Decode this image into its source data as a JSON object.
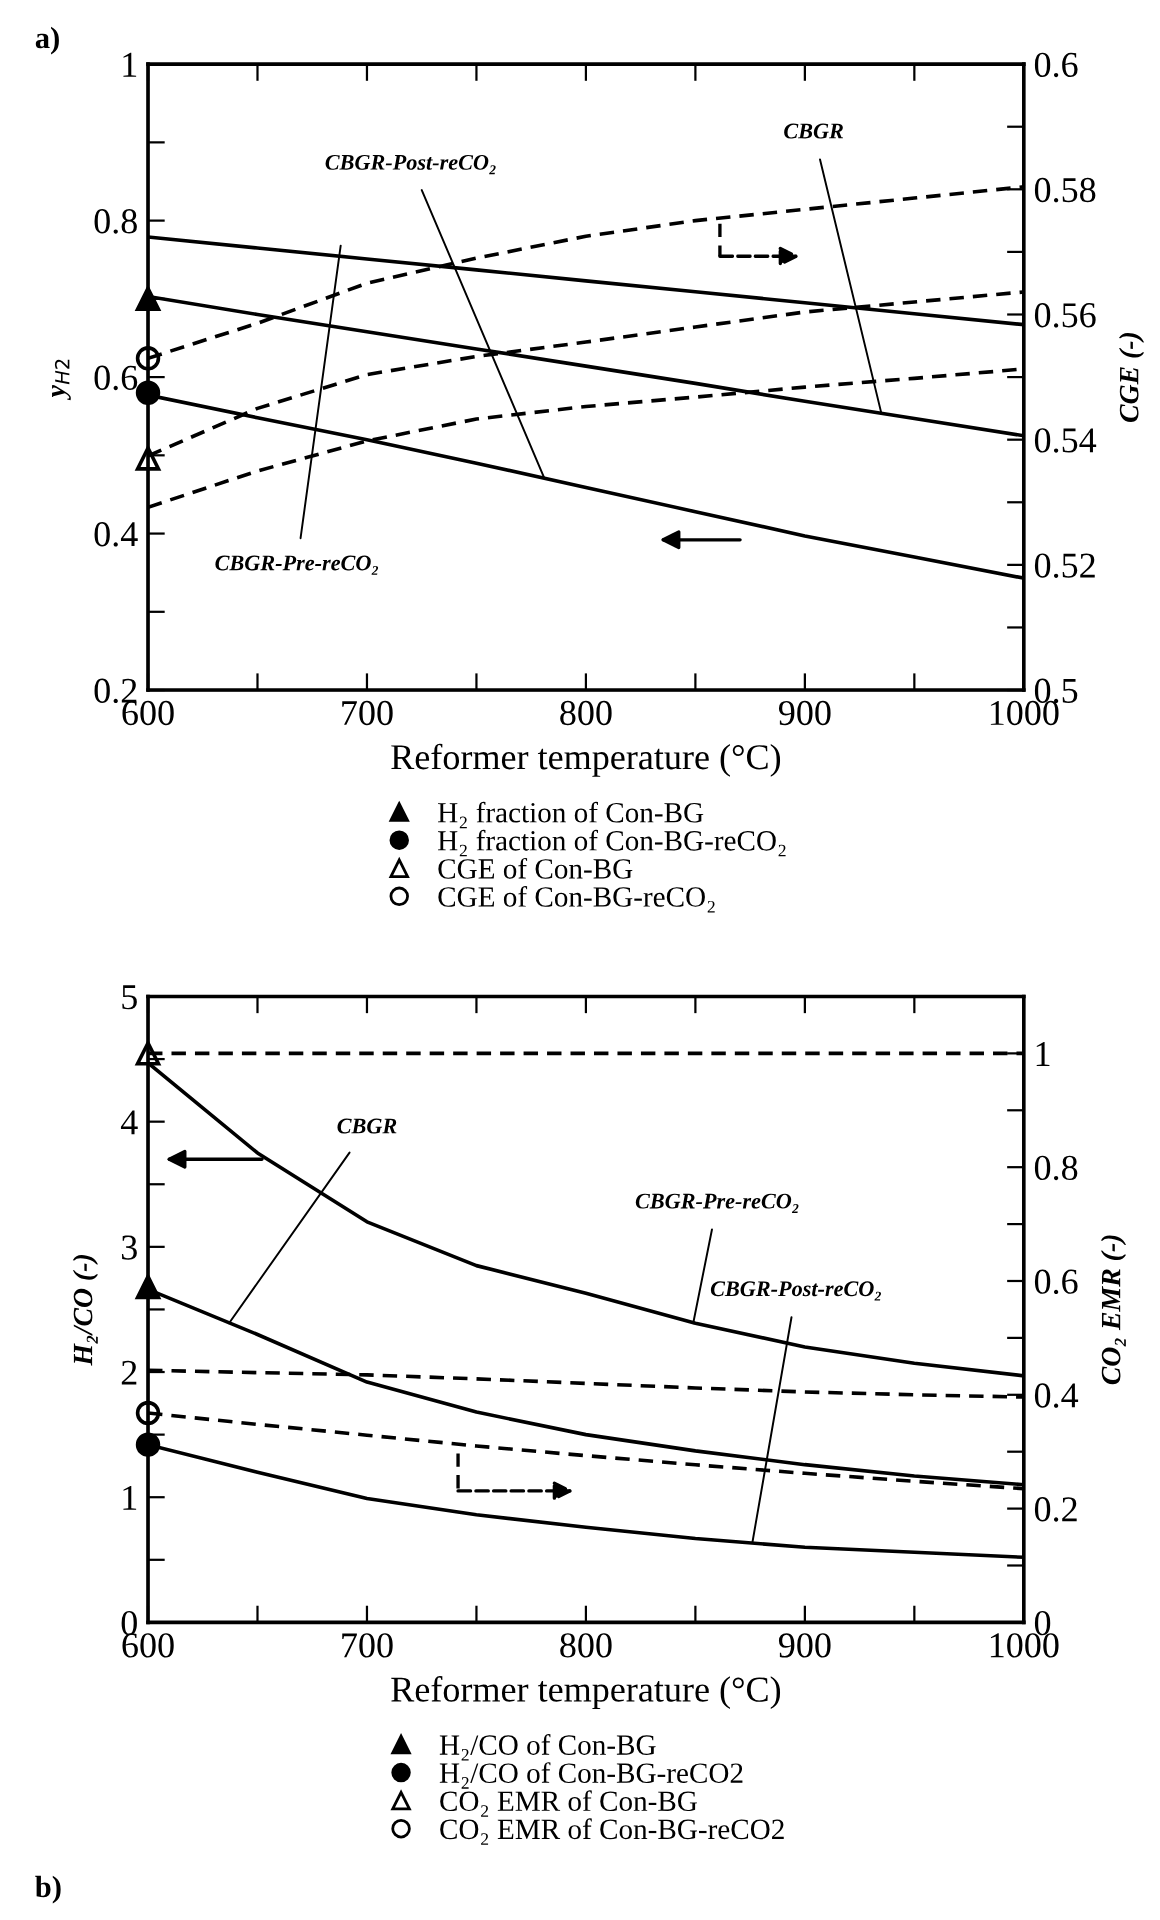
{
  "chart_data": [
    {
      "type": "line",
      "xlabel": "Reformer temperature (°C)",
      "ylabel": "y$_{H2}$",
      "y2label": "CGE (-)",
      "legend": "bottom",
      "xlim": [
        600,
        1000
      ],
      "xticks": [
        600,
        {
          "value": 650,
          "label": null
        },
        700,
        {
          "value": 750,
          "label": null
        },
        800,
        {
          "value": 850,
          "label": null
        },
        900,
        {
          "value": 950,
          "label": null
        },
        1000
      ],
      "ylim": [
        0.2,
        1
      ],
      "yticks": [
        0.2,
        {
          "value": 0.3,
          "label": null
        },
        0.4,
        {
          "value": 0.5,
          "label": null
        },
        0.6,
        {
          "value": 0.7,
          "label": null
        },
        0.8,
        {
          "value": 0.9,
          "label": null
        },
        1
      ],
      "y2lim": [
        0.5,
        0.6
      ],
      "y2ticks": [
        0.5,
        {
          "value": 0.51,
          "label": null
        },
        0.52,
        {
          "value": 0.53,
          "label": null
        },
        0.54,
        {
          "value": 0.55,
          "label": null
        },
        0.56,
        {
          "value": 0.57,
          "label": null
        },
        0.58,
        {
          "value": 0.59,
          "label": null
        },
        0.6
      ],
      "x": [
        600,
        650,
        700,
        750,
        800,
        850,
        900,
        950,
        1000
      ],
      "series": [
        {
          "color": "#000000",
          "line_style": "solid",
          "marker": "none",
          "values": [
            0.779,
            0.765,
            0.751,
            0.737,
            0.723,
            0.709,
            0.695,
            0.681,
            0.667
          ]
        },
        {
          "color": "#000000",
          "line_style": "solid",
          "marker": "none",
          "values": [
            0.703,
            0.68,
            0.658,
            0.636,
            0.614,
            0.592,
            0.569,
            0.547,
            0.525
          ]
        },
        {
          "color": "#000000",
          "line_style": "solid",
          "marker": "none",
          "values": [
            0.577,
            0.548,
            0.52,
            0.49,
            0.459,
            0.428,
            0.397,
            0.37,
            0.343
          ]
        },
        {
          "color": "#000000",
          "line_style": "dashed",
          "marker": "none",
          "axis": "y2",
          "values": [
            0.553,
            0.5586,
            0.565,
            0.569,
            0.5725,
            0.575,
            0.5768,
            0.5786,
            0.5804
          ]
        },
        {
          "color": "#000000",
          "line_style": "dashed",
          "marker": "none",
          "axis": "y2",
          "values": [
            0.5374,
            0.545,
            0.5504,
            0.5533,
            0.5556,
            0.558,
            0.5604,
            0.562,
            0.5636
          ]
        },
        {
          "color": "#000000",
          "line_style": "dashed",
          "marker": "none",
          "axis": "y2",
          "values": [
            0.5292,
            0.535,
            0.5398,
            0.5433,
            0.5453,
            0.5468,
            0.5484,
            0.5498,
            0.5513
          ]
        },
        {
          "type": "scatter",
          "name": "H₂ fraction of Con-BG",
          "color": "#000000",
          "marker": "triangle",
          "values": [
            0.7,
            null,
            null,
            null,
            null,
            null,
            null,
            null,
            null
          ]
        },
        {
          "type": "scatter",
          "name": "H₂ fraction of Con-BG-reCO₂",
          "color": "#000000",
          "marker": "circle",
          "values": [
            0.58,
            null,
            null,
            null,
            null,
            null,
            null,
            null,
            null
          ]
        },
        {
          "type": "scatter",
          "name": "CGE of Con-BG",
          "color": "#000000",
          "marker": "triangle",
          "axis": "y2",
          "values": [
            0.537,
            null,
            null,
            null,
            null,
            null,
            null,
            null,
            null
          ]
        },
        {
          "type": "scatter",
          "name": "CGE of Con-BG-reCO₂",
          "color": "#000000",
          "marker": "circle",
          "axis": "y2",
          "values": [
            0.553,
            null,
            null,
            null,
            null,
            null,
            null,
            null,
            null
          ]
        }
      ],
      "annotations": [
        "a)",
        {
          "text": "CBGR-Post-reCO₂",
          "x": 781,
          "y": 0.471
        },
        {
          "text": "CBGR",
          "x": 935,
          "y": 0.553
        },
        {
          "text": "CBGR-Pre-reCO₂",
          "x": 688,
          "y": 0.768
        }
      ]
    },
    {
      "type": "line",
      "xlabel": "Reformer temperature (°C)",
      "ylabel": "H₂/CO (-)",
      "y2label": "CO₂ EMR (-)",
      "legend": "bottom",
      "xlim": [
        600,
        1000
      ],
      "xticks": [
        600,
        {
          "value": 650,
          "label": null
        },
        700,
        {
          "value": 750,
          "label": null
        },
        800,
        {
          "value": 850,
          "label": null
        },
        900,
        {
          "value": 950,
          "label": null
        },
        1000
      ],
      "ylim": [
        0,
        5
      ],
      "yticks": [
        0,
        {
          "value": 0.5,
          "label": null
        },
        1,
        {
          "value": 1.5,
          "label": null
        },
        2,
        {
          "value": 2.5,
          "label": null
        },
        3,
        {
          "value": 3.5,
          "label": null
        },
        4,
        {
          "value": 4.5,
          "label": null
        },
        5
      ],
      "y2lim": [
        0,
        1.1
      ],
      "y2ticks": [
        0,
        {
          "value": 0.1,
          "label": null
        },
        0.2,
        {
          "value": 0.3,
          "label": null
        },
        0.4,
        {
          "value": 0.5,
          "label": null
        },
        0.6,
        {
          "value": 0.7,
          "label": null
        },
        0.8,
        {
          "value": 0.9,
          "label": null
        },
        1
      ],
      "x": [
        600,
        650,
        700,
        750,
        800,
        850,
        900,
        950,
        1000
      ],
      "series": [
        {
          "color": "#000000",
          "line_style": "solid",
          "marker": "none",
          "values": [
            4.47,
            3.75,
            3.2,
            2.85,
            2.63,
            2.39,
            2.2,
            2.07,
            1.97
          ]
        },
        {
          "color": "#000000",
          "line_style": "solid",
          "marker": "none",
          "values": [
            2.66,
            2.3,
            1.92,
            1.68,
            1.5,
            1.37,
            1.26,
            1.17,
            1.1
          ]
        },
        {
          "color": "#000000",
          "line_style": "solid",
          "marker": "none",
          "values": [
            1.42,
            1.2,
            0.99,
            0.86,
            0.76,
            0.67,
            0.6,
            0.56,
            0.52
          ]
        },
        {
          "color": "#000000",
          "line_style": "dashed",
          "marker": "none",
          "axis": "y2",
          "values": [
            1.0,
            1.0,
            1.0,
            1.0,
            1.0,
            1.0,
            1.0,
            1.0,
            1.0
          ]
        },
        {
          "color": "#000000",
          "line_style": "dashed",
          "marker": "none",
          "axis": "y2",
          "values": [
            0.443,
            0.439,
            0.435,
            0.428,
            0.42,
            0.412,
            0.405,
            0.4,
            0.396
          ]
        },
        {
          "color": "#000000",
          "line_style": "dashed",
          "marker": "none",
          "axis": "y2",
          "values": [
            0.368,
            0.348,
            0.329,
            0.31,
            0.293,
            0.277,
            0.262,
            0.248,
            0.235
          ]
        },
        {
          "type": "scatter",
          "name": "H₂/CO of Con-BG",
          "color": "#000000",
          "marker": "triangle",
          "values": [
            2.68,
            null,
            null,
            null,
            null,
            null,
            null,
            null,
            null
          ]
        },
        {
          "type": "scatter",
          "name": "H₂/CO of Con-BG-reCO2",
          "color": "#000000",
          "marker": "circle",
          "values": [
            1.42,
            null,
            null,
            null,
            null,
            null,
            null,
            null,
            null
          ]
        },
        {
          "type": "scatter",
          "name": "CO₂ EMR of Con-BG",
          "color": "#000000",
          "marker": "triangle",
          "axis": "y2",
          "values": [
            1.0,
            null,
            null,
            null,
            null,
            null,
            null,
            null,
            null
          ]
        },
        {
          "type": "scatter",
          "name": "CO₂ EMR of Con-BG-reCO2",
          "color": "#000000",
          "marker": "circle",
          "axis": "y2",
          "values": [
            0.368,
            null,
            null,
            null,
            null,
            null,
            null,
            null,
            null
          ]
        }
      ],
      "annotations": [
        "b)",
        {
          "text": "CBGR",
          "x": 637,
          "y": 2.39
        },
        {
          "text": "CBGR-Pre-reCO₂",
          "x": 849,
          "y": 2.39
        },
        {
          "text": "CBGR-Post-reCO₂",
          "x": 876,
          "y": 0.634
        }
      ]
    }
  ]
}
